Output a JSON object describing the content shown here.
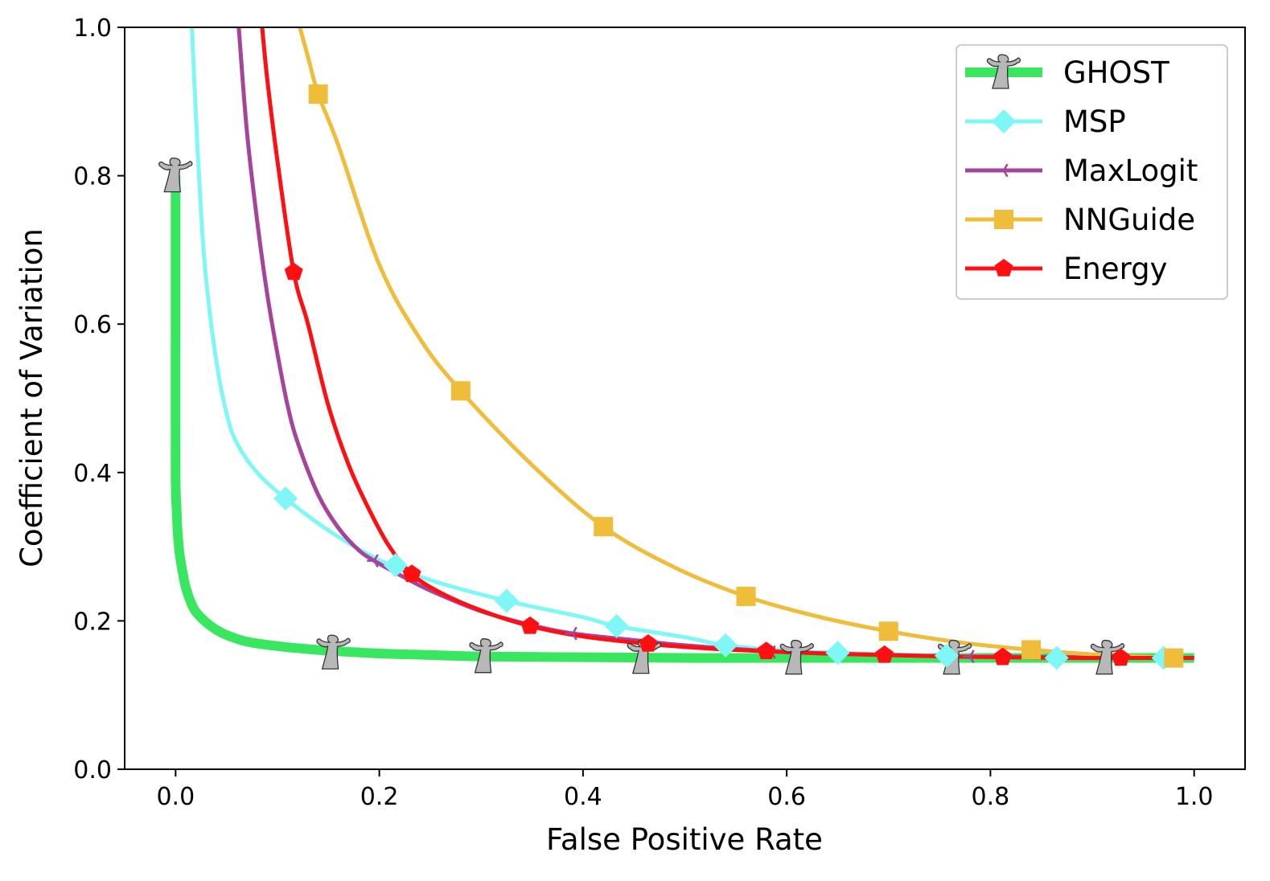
{
  "chart_data": {
    "type": "line",
    "title": "",
    "xlabel": "False Positive Rate",
    "ylabel": "Coefficient of Variation",
    "xlim": [
      -0.05,
      1.05
    ],
    "ylim": [
      0.0,
      1.0
    ],
    "xticks": [
      {
        "value": 0.0,
        "label": "0.0"
      },
      {
        "value": 0.2,
        "label": "0.2"
      },
      {
        "value": 0.4,
        "label": "0.4"
      },
      {
        "value": 0.6,
        "label": "0.6"
      },
      {
        "value": 0.8,
        "label": "0.8"
      },
      {
        "value": 1.0,
        "label": "1.0"
      }
    ],
    "yticks": [
      {
        "value": 0.0,
        "label": "0.0"
      },
      {
        "value": 0.2,
        "label": "0.2"
      },
      {
        "value": 0.4,
        "label": "0.4"
      },
      {
        "value": 0.6,
        "label": "0.6"
      },
      {
        "value": 0.8,
        "label": "0.8"
      },
      {
        "value": 1.0,
        "label": "1.0"
      }
    ],
    "grid": false,
    "legend_position": "top-right",
    "series": [
      {
        "name": "GHOST",
        "color": "#39e65f",
        "marker": "ghost",
        "line_width": "thick",
        "x": [
          0.0,
          0.0,
          0.0,
          0.001,
          0.002,
          0.004,
          0.007,
          0.01,
          0.015,
          0.02,
          0.03,
          0.04,
          0.05,
          0.07,
          0.1,
          0.13,
          0.16,
          0.2,
          0.25,
          0.3,
          0.4,
          0.5,
          0.6,
          0.7,
          0.8,
          0.9,
          1.0
        ],
        "y": [
          0.8,
          0.6,
          0.4,
          0.35,
          0.32,
          0.29,
          0.265,
          0.245,
          0.225,
          0.212,
          0.198,
          0.188,
          0.181,
          0.172,
          0.166,
          0.162,
          0.159,
          0.156,
          0.154,
          0.152,
          0.151,
          0.15,
          0.15,
          0.15,
          0.15,
          0.15,
          0.15
        ],
        "marker_x": [
          0.0,
          0.155,
          0.305,
          0.46,
          0.61,
          0.765,
          0.915
        ],
        "marker_y": [
          0.8,
          0.157,
          0.152,
          0.151,
          0.15,
          0.15,
          0.15
        ]
      },
      {
        "name": "MSP",
        "color": "#7ff7f7",
        "marker": "diamond",
        "line_width": "normal",
        "x": [
          0.016,
          0.02,
          0.025,
          0.03,
          0.04,
          0.05,
          0.06,
          0.08,
          0.108,
          0.15,
          0.2,
          0.25,
          0.325,
          0.4,
          0.433,
          0.5,
          0.54,
          0.6,
          0.65,
          0.7,
          0.757,
          0.8,
          0.865,
          0.9,
          0.97,
          1.0
        ],
        "y": [
          1.0,
          0.88,
          0.75,
          0.66,
          0.55,
          0.48,
          0.44,
          0.4,
          0.365,
          0.322,
          0.282,
          0.255,
          0.227,
          0.205,
          0.193,
          0.178,
          0.167,
          0.16,
          0.157,
          0.155,
          0.153,
          0.152,
          0.15,
          0.15,
          0.15,
          0.15
        ],
        "marker_x": [
          0.108,
          0.216,
          0.325,
          0.433,
          0.54,
          0.65,
          0.757,
          0.865,
          0.97
        ],
        "marker_y": [
          0.365,
          0.275,
          0.227,
          0.193,
          0.167,
          0.157,
          0.153,
          0.15,
          0.15
        ]
      },
      {
        "name": "MaxLogit",
        "color": "#a6449c",
        "marker": "tri_left",
        "line_width": "normal",
        "x": [
          0.062,
          0.07,
          0.08,
          0.09,
          0.1,
          0.11,
          0.12,
          0.14,
          0.16,
          0.18,
          0.195,
          0.22,
          0.25,
          0.3,
          0.35,
          0.39,
          0.45,
          0.5,
          0.6,
          0.7,
          0.78,
          0.9,
          1.0
        ],
        "y": [
          1.0,
          0.86,
          0.74,
          0.64,
          0.56,
          0.49,
          0.44,
          0.37,
          0.325,
          0.295,
          0.281,
          0.262,
          0.241,
          0.213,
          0.194,
          0.183,
          0.174,
          0.167,
          0.158,
          0.154,
          0.152,
          0.151,
          0.15
        ],
        "marker_x": [
          0.195,
          0.39,
          0.585,
          0.78
        ],
        "marker_y": [
          0.281,
          0.183,
          0.158,
          0.152
        ]
      },
      {
        "name": "NNGuide",
        "color": "#f0bd3a",
        "marker": "square",
        "line_width": "normal",
        "x": [
          0.122,
          0.13,
          0.14,
          0.16,
          0.2,
          0.24,
          0.28,
          0.35,
          0.42,
          0.49,
          0.56,
          0.63,
          0.7,
          0.77,
          0.84,
          0.91,
          0.98
        ],
        "y": [
          1.0,
          0.96,
          0.91,
          0.84,
          0.68,
          0.58,
          0.51,
          0.41,
          0.327,
          0.272,
          0.233,
          0.206,
          0.186,
          0.171,
          0.161,
          0.154,
          0.15
        ],
        "marker_x": [
          0.14,
          0.28,
          0.42,
          0.56,
          0.7,
          0.84,
          0.98
        ],
        "marker_y": [
          0.91,
          0.51,
          0.327,
          0.233,
          0.186,
          0.161,
          0.15
        ]
      },
      {
        "name": "Energy",
        "color": "#ff0f12",
        "marker": "pentagon",
        "line_width": "normal",
        "x": [
          0.085,
          0.09,
          0.1,
          0.116,
          0.13,
          0.15,
          0.17,
          0.19,
          0.21,
          0.232,
          0.26,
          0.3,
          0.348,
          0.4,
          0.464,
          0.52,
          0.58,
          0.64,
          0.696,
          0.76,
          0.812,
          0.87,
          0.928,
          1.0
        ],
        "y": [
          1.0,
          0.93,
          0.82,
          0.67,
          0.6,
          0.49,
          0.41,
          0.35,
          0.3,
          0.263,
          0.238,
          0.214,
          0.193,
          0.179,
          0.169,
          0.163,
          0.159,
          0.156,
          0.154,
          0.152,
          0.151,
          0.15,
          0.15,
          0.15
        ],
        "marker_x": [
          0.116,
          0.232,
          0.348,
          0.464,
          0.58,
          0.696,
          0.812,
          0.928
        ],
        "marker_y": [
          0.67,
          0.263,
          0.193,
          0.169,
          0.159,
          0.154,
          0.151,
          0.15
        ]
      }
    ]
  }
}
